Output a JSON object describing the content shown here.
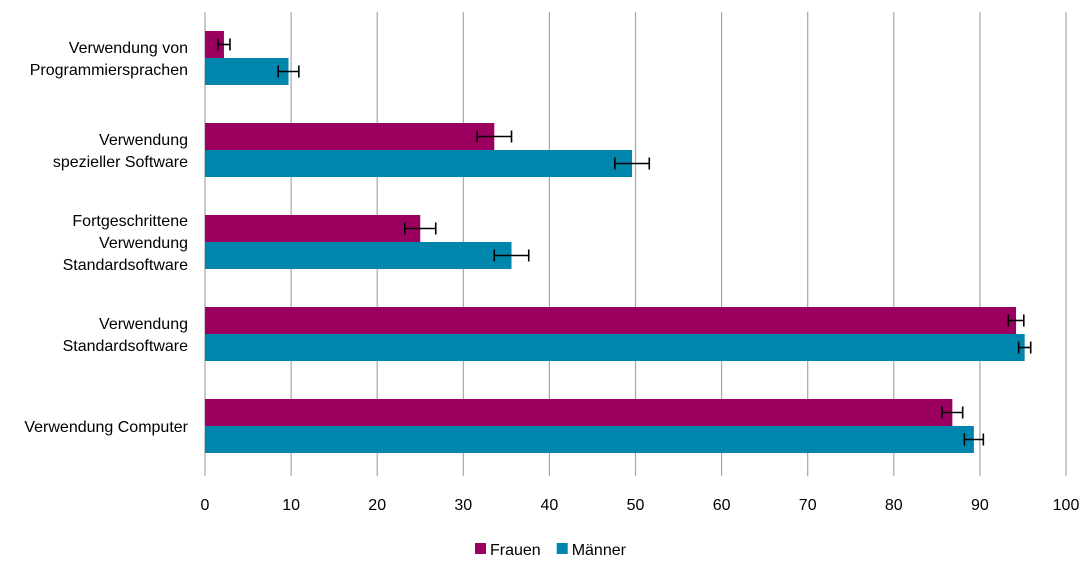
{
  "chart_data": {
    "type": "bar",
    "orientation": "horizontal",
    "categories": [
      [
        "Verwendung von",
        "Programmiersprachen"
      ],
      [
        "Verwendung",
        "spezieller Software"
      ],
      [
        "Fortgeschrittene",
        "Verwendung",
        "Standardsoftware"
      ],
      [
        "Verwendung",
        "Standardsoftware"
      ],
      [
        "Verwendung Computer"
      ]
    ],
    "series": [
      {
        "name": "Frauen",
        "color": "#9b0060",
        "values": [
          2.2,
          33.6,
          25.0,
          94.2,
          86.8
        ],
        "error": [
          0.7,
          2.0,
          1.8,
          0.9,
          1.2
        ]
      },
      {
        "name": "Männer",
        "color": "#0086ad",
        "values": [
          9.7,
          49.6,
          35.6,
          95.2,
          89.3
        ],
        "error": [
          1.2,
          2.0,
          2.0,
          0.7,
          1.1
        ]
      }
    ],
    "xlim": [
      0,
      100
    ],
    "xticks": [
      "0",
      "10",
      "20",
      "30",
      "40",
      "50",
      "60",
      "70",
      "80",
      "90",
      "100"
    ],
    "grid": true,
    "legend_position": "bottom"
  }
}
